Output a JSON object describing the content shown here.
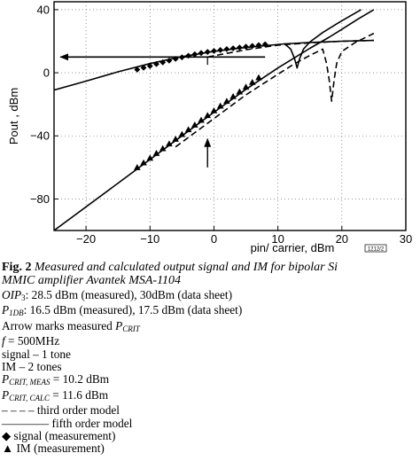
{
  "chart_data": {
    "type": "line",
    "xlabel": "pin/ carrier, dBm",
    "ylabel": "Pout , dBm",
    "xlim": [
      -25,
      30
    ],
    "ylim": [
      -100,
      45
    ],
    "xticks": [
      -20,
      -10,
      0,
      10,
      20,
      30
    ],
    "yticks": [
      40,
      0,
      -40,
      -80
    ],
    "xtick_labels": [
      "−20",
      "−10",
      "0",
      "10",
      "20",
      "30"
    ],
    "ytick_labels": [
      "40",
      "0",
      "−40",
      "−80"
    ],
    "grid": "dotted",
    "stamp": "1212/2",
    "series": [
      {
        "style": "solid",
        "points": [
          [
            -25,
            -11
          ],
          [
            -20,
            -5.3
          ],
          [
            -15,
            0.6
          ],
          [
            -10,
            5.8
          ],
          [
            -5,
            10.2
          ],
          [
            0,
            13.6
          ],
          [
            5,
            16
          ],
          [
            8,
            17.2
          ],
          [
            11,
            18.3
          ],
          [
            15,
            19.2
          ],
          [
            20,
            20
          ],
          [
            25,
            20.5
          ]
        ]
      },
      {
        "style": "solid",
        "points": [
          [
            -25,
            -100
          ],
          [
            -15,
            -70
          ],
          [
            -10,
            -55
          ],
          [
            -5,
            -40
          ],
          [
            0,
            -25
          ],
          [
            5,
            -10.5
          ],
          [
            10,
            3
          ],
          [
            15,
            15.5
          ],
          [
            18,
            22.5
          ],
          [
            20,
            27.5
          ],
          [
            22.5,
            34
          ],
          [
            25,
            40
          ]
        ]
      },
      {
        "style": "solid",
        "points": [
          [
            11,
            18.5
          ],
          [
            12,
            15
          ],
          [
            12.6,
            9
          ],
          [
            13,
            3
          ],
          [
            13.4,
            9
          ],
          [
            14,
            15
          ],
          [
            15,
            19.5
          ],
          [
            17,
            25.5
          ],
          [
            20,
            33
          ],
          [
            23,
            40
          ]
        ]
      },
      {
        "style": "dashed",
        "points": [
          [
            -1,
            10
          ],
          [
            5,
            14.6
          ],
          [
            10,
            17.5
          ],
          [
            15,
            19
          ],
          [
            20,
            20
          ],
          [
            25,
            20.5
          ]
        ]
      },
      {
        "style": "dashed",
        "points": [
          [
            -6,
            -47
          ],
          [
            0,
            -29
          ],
          [
            5,
            -14
          ],
          [
            10,
            -1
          ],
          [
            12.5,
            5.5
          ],
          [
            15,
            11
          ],
          [
            17,
            15
          ],
          [
            17.6,
            6
          ],
          [
            18,
            -4
          ],
          [
            18.4,
            -18
          ],
          [
            18.8,
            -4
          ],
          [
            19.2,
            6
          ],
          [
            20,
            13.5
          ],
          [
            22,
            19
          ],
          [
            25,
            25
          ]
        ]
      }
    ],
    "signal_measured": [
      [
        -12,
        2
      ],
      [
        -11,
        3.2
      ],
      [
        -10,
        4.3
      ],
      [
        -9,
        5.5
      ],
      [
        -8,
        6.6
      ],
      [
        -7,
        7.7
      ],
      [
        -6,
        8.8
      ],
      [
        -5,
        9.8
      ],
      [
        -4,
        10.8
      ],
      [
        -3,
        11.7
      ],
      [
        -2,
        12.5
      ],
      [
        -1,
        13.2
      ],
      [
        0,
        13.8
      ],
      [
        1,
        14.4
      ],
      [
        2,
        15
      ],
      [
        3,
        15.5
      ],
      [
        4,
        16
      ],
      [
        5,
        16.5
      ],
      [
        6,
        17
      ],
      [
        7,
        17.5
      ],
      [
        8,
        18
      ]
    ],
    "im_measured": [
      [
        -12,
        -60
      ],
      [
        -11,
        -57
      ],
      [
        -10,
        -54
      ],
      [
        -9,
        -51
      ],
      [
        -8,
        -48
      ],
      [
        -7,
        -45
      ],
      [
        -6,
        -42
      ],
      [
        -5,
        -39
      ],
      [
        -4,
        -36
      ],
      [
        -3,
        -33
      ],
      [
        -2,
        -30
      ],
      [
        -1,
        -27
      ],
      [
        0,
        -24
      ],
      [
        1,
        -21
      ],
      [
        2,
        -18
      ],
      [
        3,
        -15
      ],
      [
        4,
        -12
      ],
      [
        5,
        -9
      ],
      [
        6,
        -6
      ],
      [
        7,
        -3
      ]
    ],
    "annotations": {
      "horizontal_arrow": {
        "from": [
          8,
          10
        ],
        "to": [
          -24,
          10
        ]
      },
      "vertical_arrow": {
        "from": [
          -1,
          -60
        ],
        "to": [
          -1,
          -42
        ]
      },
      "pcrit_marker": {
        "x": -1,
        "y": [
          5,
          10
        ]
      }
    }
  },
  "caption": {
    "label": "Fig. 2",
    "text": "Measured and calculated output signal and IM for bipolar Si",
    "text2": "MMIC amplifier Avantek MSA-1104"
  },
  "legend": {
    "oip_sym": "OIP",
    "oip_sub": "3",
    "oip_text": ": 28.5 dBm (measured), 30dBm (data sheet)",
    "p1db_sym": "P",
    "p1db_sub": "1DB",
    "p1db_text": ": 16.5 dBm (measured), 17.5 dBm (data sheet)",
    "arrow_text": "Arrow marks measured ",
    "arrow_sym": "P",
    "arrow_sub": "CRIT",
    "f_sym": "f",
    "f_text": " = 500MHz",
    "signal_text": "signal – 1 tone",
    "im_text": "IM – 2 tones",
    "pmeas_sym": "P",
    "pmeas_sub": "CRIT, MEAS",
    "pmeas_text": " = 10.2 dBm",
    "pcalc_sym": "P",
    "pcalc_sub": "CRIT, CALC",
    "pcalc_text": " = 11.6 dBm",
    "third_sym": "– – – –",
    "third_text": " third order model",
    "fifth_sym": "————",
    "fifth_text": " fifth order model",
    "diamond_glyph": "◆",
    "signal_meas_text": " signal (measurement)",
    "triangle_glyph": "▲",
    "im_meas_text": " IM (measurement)"
  }
}
